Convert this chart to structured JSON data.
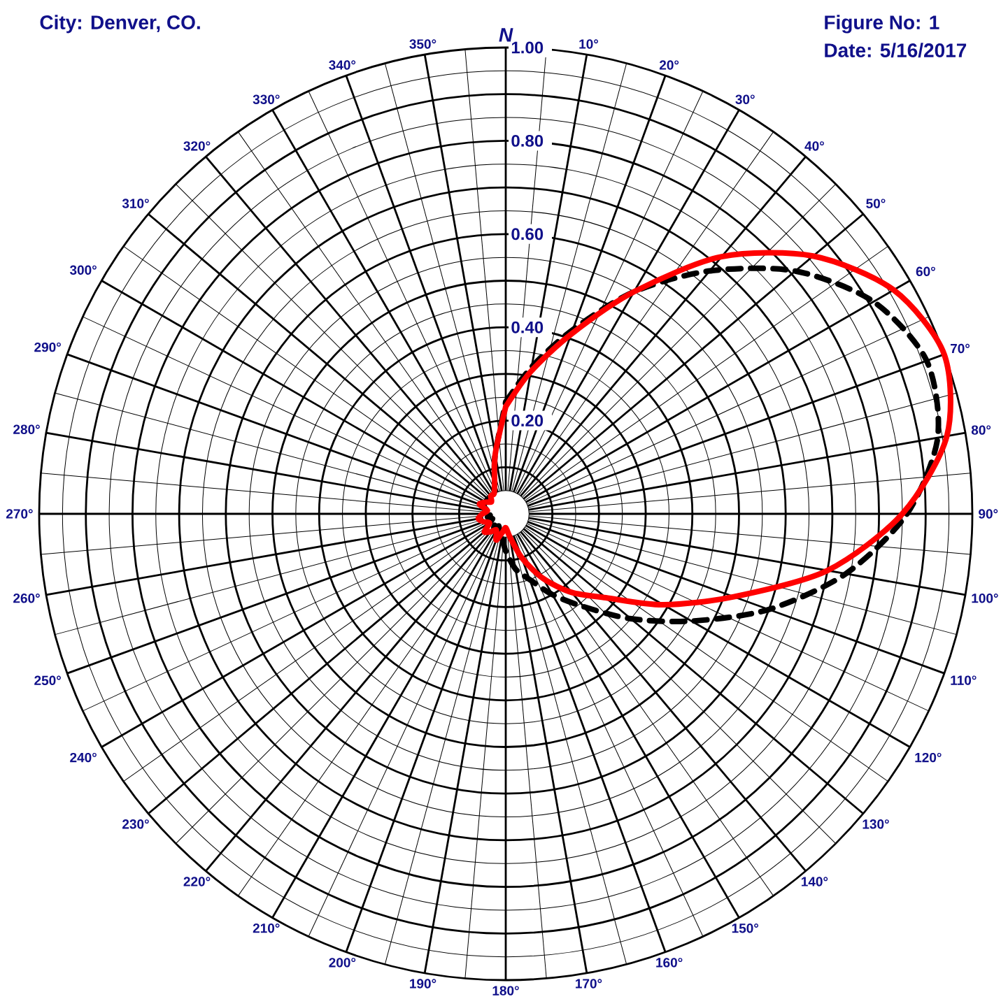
{
  "chart_data": {
    "type": "radar",
    "annotations": [
      "City: Denver, CO.",
      "Figure No: 1",
      "Date: 5/16/2017"
    ],
    "categories": [
      "N",
      "10°",
      "20°",
      "30°",
      "40°",
      "50°",
      "60°",
      "70°",
      "80°",
      "90°",
      "100°",
      "110°",
      "120°",
      "130°",
      "140°",
      "150°",
      "160°",
      "170°",
      "180°",
      "190°",
      "200°",
      "210°",
      "220°",
      "230°",
      "240°",
      "250°",
      "260°",
      "270°",
      "280°",
      "290°",
      "300°",
      "310°",
      "320°",
      "330°",
      "340°",
      "350°"
    ],
    "series": [
      {
        "color": "#000000",
        "line_style": "dashed",
        "values": [
          0.24,
          0.32,
          0.42,
          0.55,
          0.68,
          0.81,
          0.91,
          0.96,
          0.94,
          0.86,
          0.74,
          0.6,
          0.46,
          0.35,
          0.26,
          0.2,
          0.15,
          0.12,
          0.08,
          0.05,
          0.04,
          0.03,
          0.04,
          0.03,
          0.04,
          0.03,
          0.04,
          0.03,
          0.04,
          0.05,
          0.05,
          0.05,
          0.05,
          0.05,
          0.07,
          0.13
        ]
      },
      {
        "color": "#ff0000",
        "line_style": "solid",
        "values": [
          0.23,
          0.31,
          0.41,
          0.55,
          0.72,
          0.86,
          0.96,
          1.0,
          0.96,
          0.85,
          0.7,
          0.52,
          0.39,
          0.28,
          0.22,
          0.16,
          0.1,
          0.05,
          0.03,
          0.04,
          0.06,
          0.04,
          0.05,
          0.06,
          0.04,
          0.05,
          0.06,
          0.05,
          0.04,
          0.06,
          0.05,
          0.04,
          0.05,
          0.05,
          0.07,
          0.13
        ]
      }
    ],
    "ylim": [
      0,
      1.0
    ],
    "yticks": [
      {
        "value": 0.2,
        "label": "0.20"
      },
      {
        "value": 0.4,
        "label": "0.40"
      },
      {
        "value": 0.6,
        "label": "0.60"
      },
      {
        "value": 0.8,
        "label": "0.80"
      },
      {
        "value": 1.0,
        "label": "1.00"
      }
    ],
    "grid": true
  }
}
